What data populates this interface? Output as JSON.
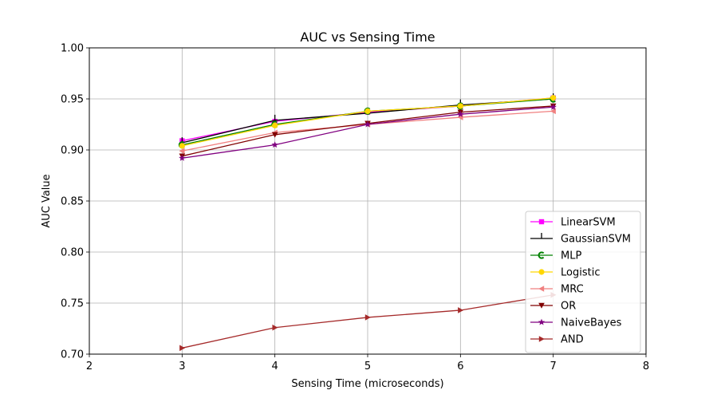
{
  "chart_data": {
    "type": "line",
    "title": "AUC vs Sensing Time",
    "xlabel": "Sensing Time (microseconds)",
    "ylabel": "AUC Value",
    "xlim": [
      2,
      8
    ],
    "ylim": [
      0.7,
      1.0
    ],
    "xticks": [
      2,
      3,
      4,
      5,
      6,
      7,
      8
    ],
    "yticks": [
      0.7,
      0.75,
      0.8,
      0.85,
      0.9,
      0.95,
      1.0
    ],
    "xtick_labels": [
      "2",
      "3",
      "4",
      "5",
      "6",
      "7",
      "8"
    ],
    "ytick_labels": [
      "0.70",
      "0.75",
      "0.80",
      "0.85",
      "0.90",
      "0.95",
      "1.00"
    ],
    "grid": true,
    "legend_position": "lower-right",
    "x": [
      3,
      4,
      5,
      6,
      7
    ],
    "series": [
      {
        "name": "LinearSVM",
        "color": "#ff00ff",
        "marker": "square",
        "values": [
          0.909,
          0.928,
          0.937,
          0.943,
          0.951
        ]
      },
      {
        "name": "GaussianSVM",
        "color": "#000000",
        "marker": "tick-up",
        "values": [
          0.907,
          0.929,
          0.936,
          0.944,
          0.95
        ]
      },
      {
        "name": "MLP",
        "color": "#008000",
        "marker": "c-shape",
        "values": [
          0.905,
          0.925,
          0.938,
          0.943,
          0.95
        ]
      },
      {
        "name": "Logistic",
        "color": "#ffd700",
        "marker": "circle",
        "values": [
          0.904,
          0.924,
          0.938,
          0.943,
          0.951
        ]
      },
      {
        "name": "MRC",
        "color": "#f08080",
        "marker": "triangle-left",
        "values": [
          0.899,
          0.917,
          0.925,
          0.932,
          0.938
        ]
      },
      {
        "name": "OR",
        "color": "#800000",
        "marker": "triangle-down",
        "values": [
          0.894,
          0.915,
          0.926,
          0.937,
          0.943
        ]
      },
      {
        "name": "NaiveBayes",
        "color": "#800080",
        "marker": "star",
        "values": [
          0.892,
          0.905,
          0.925,
          0.935,
          0.942
        ]
      },
      {
        "name": "AND",
        "color": "#a52a2a",
        "marker": "triangle-right",
        "values": [
          0.706,
          0.726,
          0.736,
          0.743,
          0.758
        ]
      }
    ]
  }
}
